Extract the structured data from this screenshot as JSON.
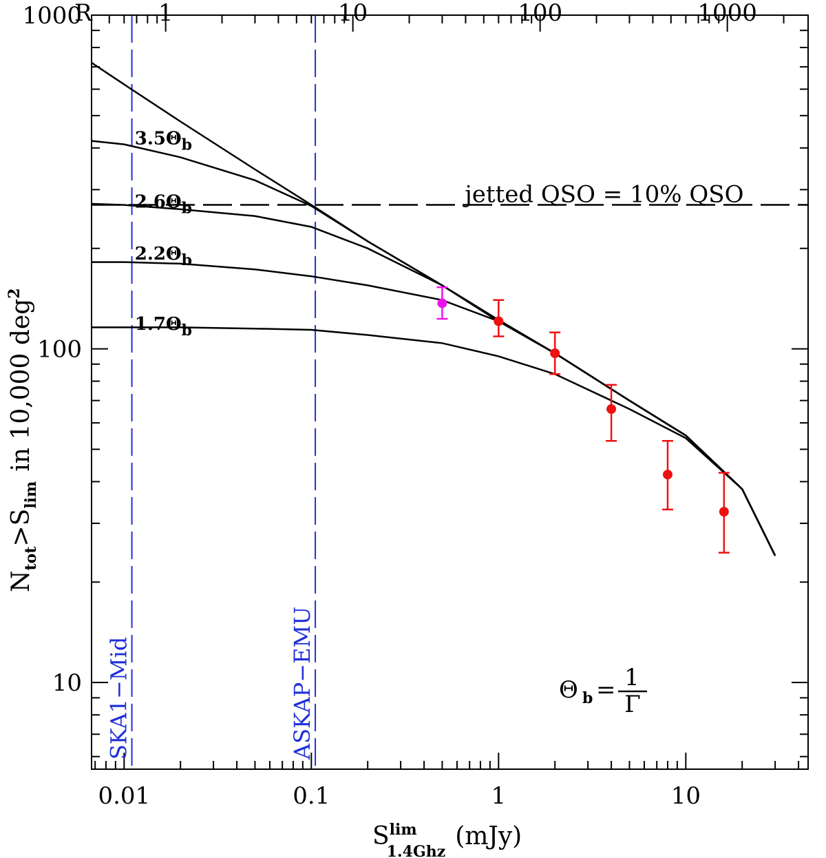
{
  "chart_data": {
    "type": "line",
    "xlabel": "S",
    "xlabel_sup": "lim",
    "xlabel_sub": "1.4Ghz",
    "xlabel_unit": "(mJy)",
    "ylabel": "N",
    "ylabel_sub1": "tot",
    "ylabel_mid": ">S",
    "ylabel_sub2": "lim",
    "ylabel_tail": "in 10,000 deg",
    "ylabel_sup": "2",
    "x_scale": "log",
    "y_scale": "log",
    "xlim": [
      0.0067,
      45
    ],
    "ylim": [
      5.5,
      1000
    ],
    "x_ticks": [
      {
        "value": 0.01,
        "label": "0.01"
      },
      {
        "value": 0.1,
        "label": "0.1"
      },
      {
        "value": 1,
        "label": "1"
      },
      {
        "value": 10,
        "label": "10"
      }
    ],
    "y_ticks": [
      {
        "value": 10,
        "label": "10"
      },
      {
        "value": 100,
        "label": "100"
      },
      {
        "value": 1000,
        "label": "1000"
      }
    ],
    "top_axis": {
      "name": "R",
      "factor": 60,
      "ticks": [
        {
          "value": 1,
          "label": "1"
        },
        {
          "value": 10,
          "label": "10"
        },
        {
          "value": 100,
          "label": "100"
        },
        {
          "value": 1000,
          "label": "1000"
        }
      ]
    },
    "series": [
      {
        "name": "total",
        "label": "",
        "x": [
          0.0067,
          0.01,
          0.02,
          0.05,
          0.1,
          0.2,
          0.5,
          1,
          2,
          5,
          10,
          20,
          30
        ],
        "y": [
          720,
          620,
          480,
          345,
          270,
          210,
          155,
          122,
          97,
          70,
          55,
          38,
          24
        ]
      },
      {
        "name": "3.5Theta_b",
        "label": "3.5Θ",
        "label_sub": "b",
        "label_x": 0.0114,
        "label_y": 410,
        "x": [
          0.0067,
          0.01,
          0.02,
          0.05,
          0.1,
          0.2,
          0.5,
          1,
          2,
          5,
          10,
          20,
          30
        ],
        "y": [
          420,
          410,
          375,
          320,
          268,
          210,
          155,
          122,
          97,
          70,
          55,
          38,
          24
        ]
      },
      {
        "name": "2.6Theta_b",
        "label": "2.6Θ",
        "label_sub": "b",
        "label_x": 0.0114,
        "label_y": 265,
        "x": [
          0.0067,
          0.01,
          0.02,
          0.05,
          0.1,
          0.2,
          0.5,
          1,
          2,
          5,
          10,
          20,
          30
        ],
        "y": [
          272,
          270,
          262,
          250,
          232,
          200,
          155,
          121,
          97,
          70,
          55,
          38,
          24
        ]
      },
      {
        "name": "2.2Theta_b",
        "label": "2.2Θ",
        "label_sub": "b",
        "label_x": 0.0114,
        "label_y": 185,
        "x": [
          0.0067,
          0.01,
          0.02,
          0.05,
          0.1,
          0.2,
          0.5,
          1,
          2,
          5,
          10,
          20,
          30
        ],
        "y": [
          182,
          182,
          180,
          173,
          165,
          155,
          140,
          121,
          97,
          70,
          55,
          38,
          24
        ]
      },
      {
        "name": "1.7Theta_b",
        "label": "1.7Θ",
        "label_sub": "b",
        "label_x": 0.0114,
        "label_y": 114,
        "x": [
          0.0067,
          0.01,
          0.02,
          0.05,
          0.1,
          0.2,
          0.5,
          1,
          2,
          5,
          10,
          20,
          30
        ],
        "y": [
          116,
          116,
          116,
          115,
          114,
          110,
          104,
          95,
          84,
          66,
          54,
          38,
          24
        ]
      }
    ],
    "horizontal_line": {
      "y": 270,
      "label": "jetted QSO = 10% QSO",
      "label_x": 0.66,
      "style": "dashed"
    },
    "vertical_lines": [
      {
        "x": 0.011,
        "label": "SKA1−Mid",
        "color": "#1f2fd8"
      },
      {
        "x": 0.105,
        "label": "ASKAP−EMU",
        "color": "#1f2fd8"
      }
    ],
    "points": [
      {
        "x": 0.5,
        "y": 137,
        "ylow": 123,
        "yhigh": 153,
        "color": "#ee11ee"
      },
      {
        "x": 1,
        "y": 121,
        "ylow": 109,
        "yhigh": 140,
        "color": "#ee1111"
      },
      {
        "x": 2,
        "y": 97,
        "ylow": 84,
        "yhigh": 112,
        "color": "#ee1111"
      },
      {
        "x": 4,
        "y": 66,
        "ylow": 53,
        "yhigh": 78,
        "color": "#ee1111"
      },
      {
        "x": 8,
        "y": 42,
        "ylow": 33,
        "yhigh": 53,
        "color": "#ee1111"
      },
      {
        "x": 16,
        "y": 32.5,
        "ylow": 24.5,
        "yhigh": 42.5,
        "color": "#ee1111"
      }
    ],
    "annotation": {
      "lhs": "Θ",
      "lhs_sub": "b",
      "eq": "=",
      "num": "1",
      "den": "Γ",
      "x": 7.5,
      "y": 7.5
    }
  }
}
